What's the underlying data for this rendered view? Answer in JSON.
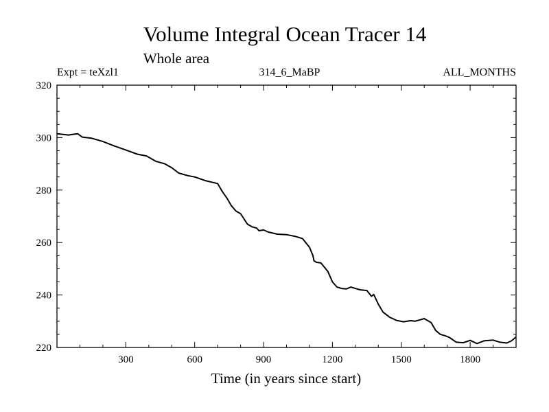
{
  "chart_data": {
    "type": "line",
    "title": "Volume Integral Ocean Tracer 14",
    "subtitle": "Whole area",
    "left_label": "Expt = teXzl1",
    "center_label": "314_6_MaBP",
    "right_label": "ALL_MONTHS",
    "xlabel": "Time (in years since start)",
    "ylabel": "",
    "xlim": [
      0,
      2000
    ],
    "ylim": [
      220,
      320
    ],
    "xticks": [
      300,
      600,
      900,
      1200,
      1500,
      1800
    ],
    "yticks": [
      220,
      240,
      260,
      280,
      300,
      320
    ],
    "grid": false,
    "series": [
      {
        "name": "Volume Integral Ocean Tracer 14",
        "color": "#000000",
        "x": [
          0,
          50,
          90,
          110,
          150,
          200,
          250,
          300,
          350,
          390,
          430,
          470,
          500,
          530,
          570,
          600,
          650,
          700,
          720,
          740,
          760,
          780,
          800,
          830,
          850,
          870,
          880,
          900,
          920,
          960,
          1000,
          1040,
          1070,
          1100,
          1115,
          1120,
          1130,
          1150,
          1180,
          1200,
          1220,
          1240,
          1260,
          1280,
          1300,
          1320,
          1350,
          1370,
          1380,
          1400,
          1420,
          1450,
          1480,
          1510,
          1540,
          1560,
          1580,
          1600,
          1630,
          1650,
          1670,
          1690,
          1710,
          1740,
          1770,
          1800,
          1830,
          1860,
          1900,
          1930,
          1960,
          1980,
          2000
        ],
        "y": [
          301.5,
          301,
          301.5,
          300.2,
          299.8,
          298.5,
          296.8,
          295.3,
          293.7,
          293,
          291,
          290,
          288.5,
          286.5,
          285.5,
          285,
          283.5,
          282.5,
          279.5,
          277,
          274,
          272,
          271,
          267,
          266,
          265.5,
          264.5,
          264.8,
          264,
          263.2,
          263,
          262.3,
          261.5,
          258.2,
          255,
          253,
          252.5,
          252.2,
          249,
          245,
          243,
          242.5,
          242.3,
          243,
          242.5,
          242,
          241.7,
          239.5,
          240.2,
          236.5,
          233.5,
          231.5,
          230.3,
          229.8,
          230.2,
          230,
          230.5,
          231,
          229.5,
          226.5,
          225,
          224.5,
          223.8,
          222,
          221.8,
          222.7,
          221.5,
          222.5,
          222.8,
          222,
          221.7,
          222.5,
          224
        ]
      }
    ]
  }
}
